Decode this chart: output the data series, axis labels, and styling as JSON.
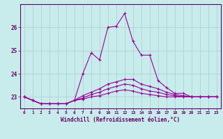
{
  "xlabel": "Windchill (Refroidissement éolien,°C)",
  "x_values": [
    0,
    1,
    2,
    3,
    4,
    5,
    6,
    7,
    8,
    9,
    10,
    11,
    12,
    13,
    14,
    15,
    16,
    17,
    18,
    19,
    20,
    21,
    22,
    23
  ],
  "series": [
    [
      23.0,
      22.85,
      22.7,
      22.7,
      22.7,
      22.7,
      22.85,
      24.0,
      24.9,
      24.6,
      26.0,
      26.05,
      26.6,
      25.4,
      24.8,
      24.8,
      23.7,
      23.4,
      23.15,
      23.15,
      23.0,
      23.0,
      23.0,
      23.0
    ],
    [
      23.0,
      22.85,
      22.7,
      22.7,
      22.7,
      22.7,
      22.85,
      23.05,
      23.2,
      23.35,
      23.55,
      23.65,
      23.75,
      23.75,
      23.55,
      23.45,
      23.35,
      23.2,
      23.1,
      23.05,
      23.0,
      23.0,
      23.0,
      23.0
    ],
    [
      23.0,
      22.85,
      22.7,
      22.7,
      22.7,
      22.7,
      22.85,
      22.95,
      23.1,
      23.2,
      23.35,
      23.45,
      23.55,
      23.5,
      23.35,
      23.25,
      23.2,
      23.1,
      23.05,
      23.0,
      23.0,
      23.0,
      23.0,
      23.0
    ],
    [
      23.0,
      22.85,
      22.7,
      22.7,
      22.7,
      22.7,
      22.85,
      22.9,
      23.0,
      23.05,
      23.15,
      23.25,
      23.3,
      23.25,
      23.15,
      23.1,
      23.05,
      23.0,
      23.0,
      23.0,
      23.0,
      23.0,
      23.0,
      23.0
    ]
  ],
  "line_color": "#990099",
  "marker": "+",
  "markersize": 3,
  "linewidth": 0.8,
  "background_color": "#c8ecec",
  "grid_color": "#aacccc",
  "axis_color": "#660066",
  "text_color": "#660066",
  "ylim": [
    22.5,
    27.0
  ],
  "yticks": [
    23,
    24,
    25,
    26
  ],
  "xlim": [
    -0.5,
    23.5
  ]
}
